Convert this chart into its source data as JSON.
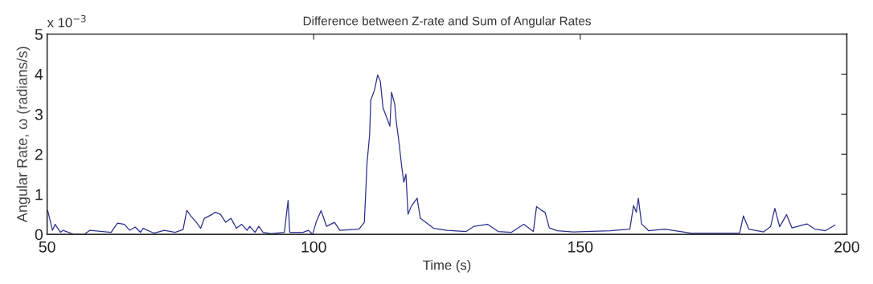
{
  "chart_data": {
    "type": "line",
    "title": "Difference between Z-rate and Sum of Angular Rates",
    "xlabel": "Time (s)",
    "ylabel": "Angular Rate, ω (radians/s)",
    "annotations": [
      "x 10$^{−3}$"
    ],
    "xlim": [
      50,
      200
    ],
    "xticks": [
      50,
      100,
      150,
      200
    ],
    "ylim": [
      0,
      5
    ],
    "yticks": [
      0,
      1,
      2,
      3,
      4,
      5
    ],
    "grid": false,
    "legend": false,
    "marker": "none",
    "line_style": "solid",
    "series": [
      {
        "color": "#2b2f8c",
        "x": [
          50.1,
          51,
          51.5,
          52.5,
          53,
          55,
          57,
          58,
          62,
          63.2,
          64.5,
          65.5,
          66.5,
          67.5,
          68,
          70,
          72,
          74,
          75.5,
          76.2,
          77,
          78,
          78.8,
          79.5,
          81,
          81.5,
          82.5,
          83.5,
          84.5,
          85.5,
          86.5,
          87.5,
          88,
          89,
          89.7,
          90.5,
          92,
          94.5,
          95.2,
          95.5,
          98,
          99,
          99.8,
          100.5,
          101.4,
          102.4,
          103.9,
          104.9,
          108.5,
          109.5,
          110,
          110.5,
          110.7,
          111.4,
          112,
          112.5,
          113,
          114.3,
          114.6,
          115.2,
          115.5,
          116,
          116.5,
          116.9,
          117.3,
          117.7,
          118.3,
          119.4,
          120,
          121,
          122.5,
          125,
          128.6,
          130.1,
          132.6,
          134.6,
          137.1,
          139.4,
          141.2,
          141.8,
          142.7,
          143.4,
          144.2,
          145.7,
          148.7,
          155.7,
          159.3,
          160,
          160.5,
          160.9,
          161.5,
          162.8,
          165.8,
          170.8,
          179.9,
          180.6,
          181.6,
          184.4,
          185.7,
          186.5,
          187.4,
          188.7,
          189.7,
          192.5,
          194,
          196,
          197.8
        ],
        "values": [
          0.6,
          0.1,
          0.25,
          0.05,
          0.1,
          0.0,
          0.0,
          0.1,
          0.05,
          0.28,
          0.25,
          0.1,
          0.18,
          0.05,
          0.15,
          0.03,
          0.1,
          0.05,
          0.12,
          0.6,
          0.45,
          0.3,
          0.15,
          0.4,
          0.5,
          0.55,
          0.5,
          0.3,
          0.4,
          0.15,
          0.25,
          0.1,
          0.2,
          0.05,
          0.2,
          0.05,
          0.02,
          0.05,
          0.85,
          0.05,
          0.05,
          0.1,
          0.0,
          0.32,
          0.59,
          0.2,
          0.3,
          0.1,
          0.13,
          0.3,
          1.77,
          2.5,
          3.35,
          3.6,
          3.98,
          3.82,
          3.16,
          2.7,
          3.55,
          3.25,
          2.8,
          2.3,
          1.7,
          1.3,
          1.5,
          0.5,
          0.7,
          0.9,
          0.4,
          0.3,
          0.15,
          0.1,
          0.07,
          0.2,
          0.25,
          0.07,
          0.05,
          0.25,
          0.07,
          0.69,
          0.6,
          0.55,
          0.16,
          0.09,
          0.06,
          0.09,
          0.13,
          0.72,
          0.55,
          0.9,
          0.26,
          0.09,
          0.13,
          0.03,
          0.03,
          0.46,
          0.13,
          0.06,
          0.19,
          0.65,
          0.19,
          0.49,
          0.16,
          0.26,
          0.13,
          0.09,
          0.23
        ]
      }
    ]
  }
}
